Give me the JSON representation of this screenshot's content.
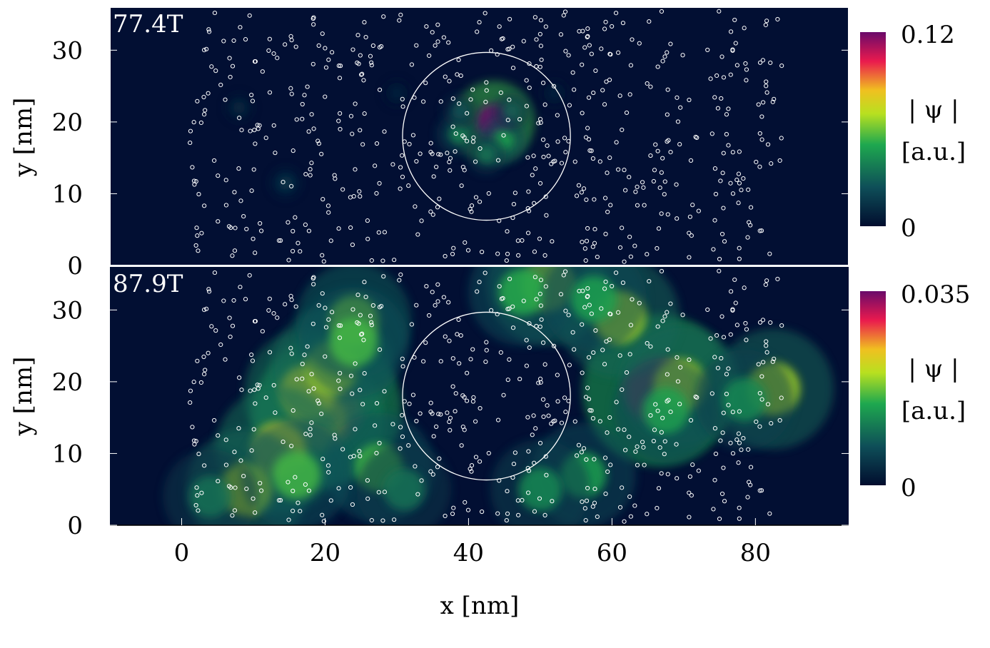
{
  "chart_data": [
    {
      "type": "heatmap",
      "panel_label": "77.4T",
      "xlabel": "",
      "ylabel": "y [nm]",
      "xlim": [
        -10,
        93
      ],
      "ylim": [
        0,
        36
      ],
      "y_ticks": [
        0,
        10,
        20,
        30
      ],
      "ring": {
        "cx": 42.5,
        "cy": 18,
        "r": 11.7
      },
      "colorbar": {
        "min_label": "0",
        "max_label": "0.12",
        "title_line1": "| ψ |",
        "title_line2": "[a.u.]",
        "min": 0,
        "max": 0.12
      },
      "peaks": [
        {
          "x": 43.5,
          "y": 20,
          "value": 0.12
        },
        {
          "x": 44.8,
          "y": 17.5,
          "value": 0.05
        },
        {
          "x": 38.5,
          "y": 18.3,
          "value": 0.04
        },
        {
          "x": 42.5,
          "y": 15.5,
          "value": 0.035
        },
        {
          "x": 46.0,
          "y": 21.5,
          "value": 0.03
        },
        {
          "x": 38.8,
          "y": 21.5,
          "value": 0.025
        },
        {
          "x": 14.5,
          "y": 11.5,
          "value": 0.018
        },
        {
          "x": 8.0,
          "y": 22.0,
          "value": 0.012
        },
        {
          "x": 30.0,
          "y": 24.0,
          "value": 0.01
        },
        {
          "x": 52.0,
          "y": 24.0,
          "value": 0.01
        }
      ]
    },
    {
      "type": "heatmap",
      "panel_label": "87.9T",
      "xlabel": "x [nm]",
      "ylabel": "y [nm]",
      "xlim": [
        -10,
        93
      ],
      "ylim": [
        0,
        36
      ],
      "x_ticks": [
        0,
        20,
        40,
        60,
        80
      ],
      "y_ticks": [
        0,
        10,
        20,
        30
      ],
      "ring": {
        "cx": 42.5,
        "cy": 18,
        "r": 11.7
      },
      "colorbar": {
        "min_label": "0",
        "max_label": "0.035",
        "title_line1": "| ψ |",
        "title_line2": "[a.u.]",
        "min": 0,
        "max": 0.035
      },
      "peaks": [
        {
          "x": 66.5,
          "y": 18.8,
          "value": 0.032
        },
        {
          "x": 20.5,
          "y": 16.2,
          "value": 0.03
        },
        {
          "x": 61.0,
          "y": 29.0,
          "value": 0.02
        },
        {
          "x": 19.0,
          "y": 14.5,
          "value": 0.025
        },
        {
          "x": 17.5,
          "y": 18.5,
          "value": 0.022
        },
        {
          "x": 13.5,
          "y": 10.5,
          "value": 0.022
        },
        {
          "x": 9.0,
          "y": 5.0,
          "value": 0.02
        },
        {
          "x": 21.0,
          "y": 22.0,
          "value": 0.02
        },
        {
          "x": 24.0,
          "y": 28.5,
          "value": 0.018
        },
        {
          "x": 27.5,
          "y": 8.0,
          "value": 0.016
        },
        {
          "x": 51.0,
          "y": 33.5,
          "value": 0.02
        },
        {
          "x": 82.5,
          "y": 19.0,
          "value": 0.02
        },
        {
          "x": 69.5,
          "y": 19.5,
          "value": 0.02
        },
        {
          "x": 56.0,
          "y": 7.0,
          "value": 0.014
        },
        {
          "x": 16.0,
          "y": 7.0,
          "value": 0.016
        },
        {
          "x": 24.0,
          "y": 25.5,
          "value": 0.016
        },
        {
          "x": 47.5,
          "y": 32.5,
          "value": 0.015
        },
        {
          "x": 57.5,
          "y": 31.5,
          "value": 0.014
        },
        {
          "x": 67.5,
          "y": 16.0,
          "value": 0.014
        },
        {
          "x": 78.5,
          "y": 17.5,
          "value": 0.012
        },
        {
          "x": 50.0,
          "y": 5.0,
          "value": 0.012
        },
        {
          "x": 31.0,
          "y": 5.0,
          "value": 0.01
        },
        {
          "x": 4.0,
          "y": 4.0,
          "value": 0.01
        }
      ]
    }
  ]
}
